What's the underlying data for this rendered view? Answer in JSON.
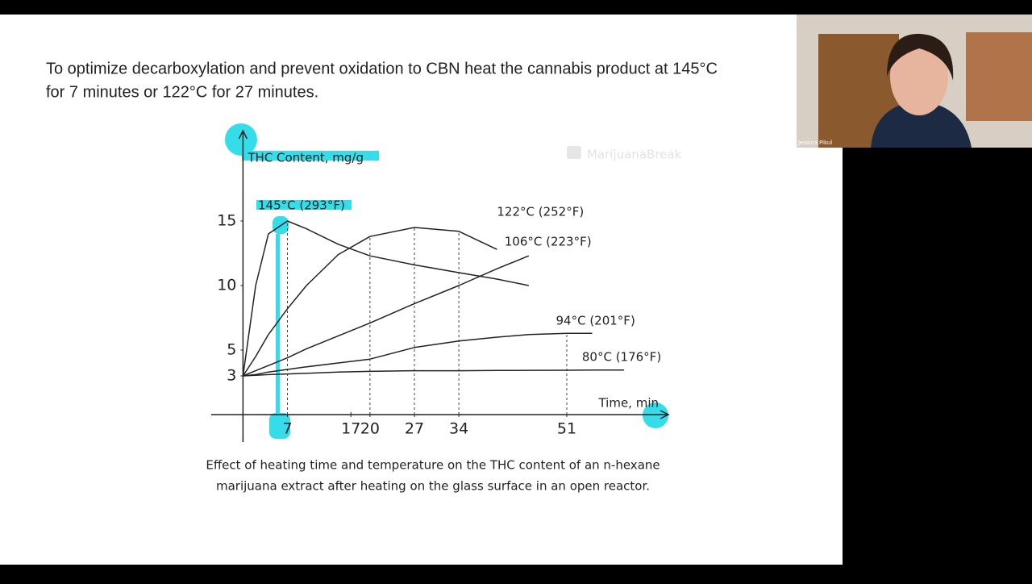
{
  "slide": {
    "text_lines": [
      "To optimize decarboxylation and prevent oxidation to CBN heat the cannabis product at 145°C",
      "for 7 minutes or 122°C for 27 minutes."
    ],
    "watermark": "MarijuanaBreak",
    "caption_lines": [
      "Effect of heating time and temperature on the THC content of an n-hexane",
      "marijuana extract after heating on the glass surface in an open reactor."
    ]
  },
  "webcam": {
    "name": "Jessica Pikul"
  },
  "chart_data": {
    "type": "line",
    "y_label": "THC Content, mg/g",
    "x_label": "Time, min",
    "x": [
      0,
      2,
      4,
      7,
      10,
      15,
      20,
      27,
      34,
      40,
      45,
      51,
      55,
      60
    ],
    "series": [
      {
        "name": "145°C (293°F)",
        "color": "#222222",
        "values": [
          3,
          10,
          14,
          15,
          14.4,
          13.2,
          12.3,
          11.6,
          11,
          10.5,
          10,
          null,
          null,
          null
        ]
      },
      {
        "name": "122°C (252°F)",
        "color": "#222222",
        "values": [
          3,
          4.5,
          6.2,
          8.2,
          10,
          12.4,
          13.8,
          14.5,
          14.2,
          12.8,
          null,
          null,
          null,
          null
        ]
      },
      {
        "name": "106°C (223°F)",
        "color": "#222222",
        "values": [
          3,
          3.4,
          3.8,
          4.4,
          5.1,
          6.1,
          7.1,
          8.6,
          10,
          11.3,
          12.3,
          null,
          null,
          null
        ]
      },
      {
        "name": "94°C (201°F)",
        "color": "#222222",
        "values": [
          3,
          3.1,
          3.3,
          3.5,
          3.7,
          4,
          4.3,
          5.2,
          5.7,
          6,
          6.2,
          6.3,
          6.3,
          null
        ]
      },
      {
        "name": "80°C (176°F)",
        "color": "#222222",
        "values": [
          3,
          3.05,
          3.1,
          3.15,
          3.2,
          3.3,
          3.35,
          3.4,
          3.4,
          3.42,
          3.43,
          3.44,
          3.45,
          3.45
        ]
      }
    ],
    "xlim": [
      -5,
      67
    ],
    "ylim": [
      -2,
      22
    ],
    "xticks": [
      7,
      17,
      20,
      27,
      34,
      51
    ],
    "yticks": [
      3,
      5,
      10,
      15
    ],
    "grid": false
  }
}
